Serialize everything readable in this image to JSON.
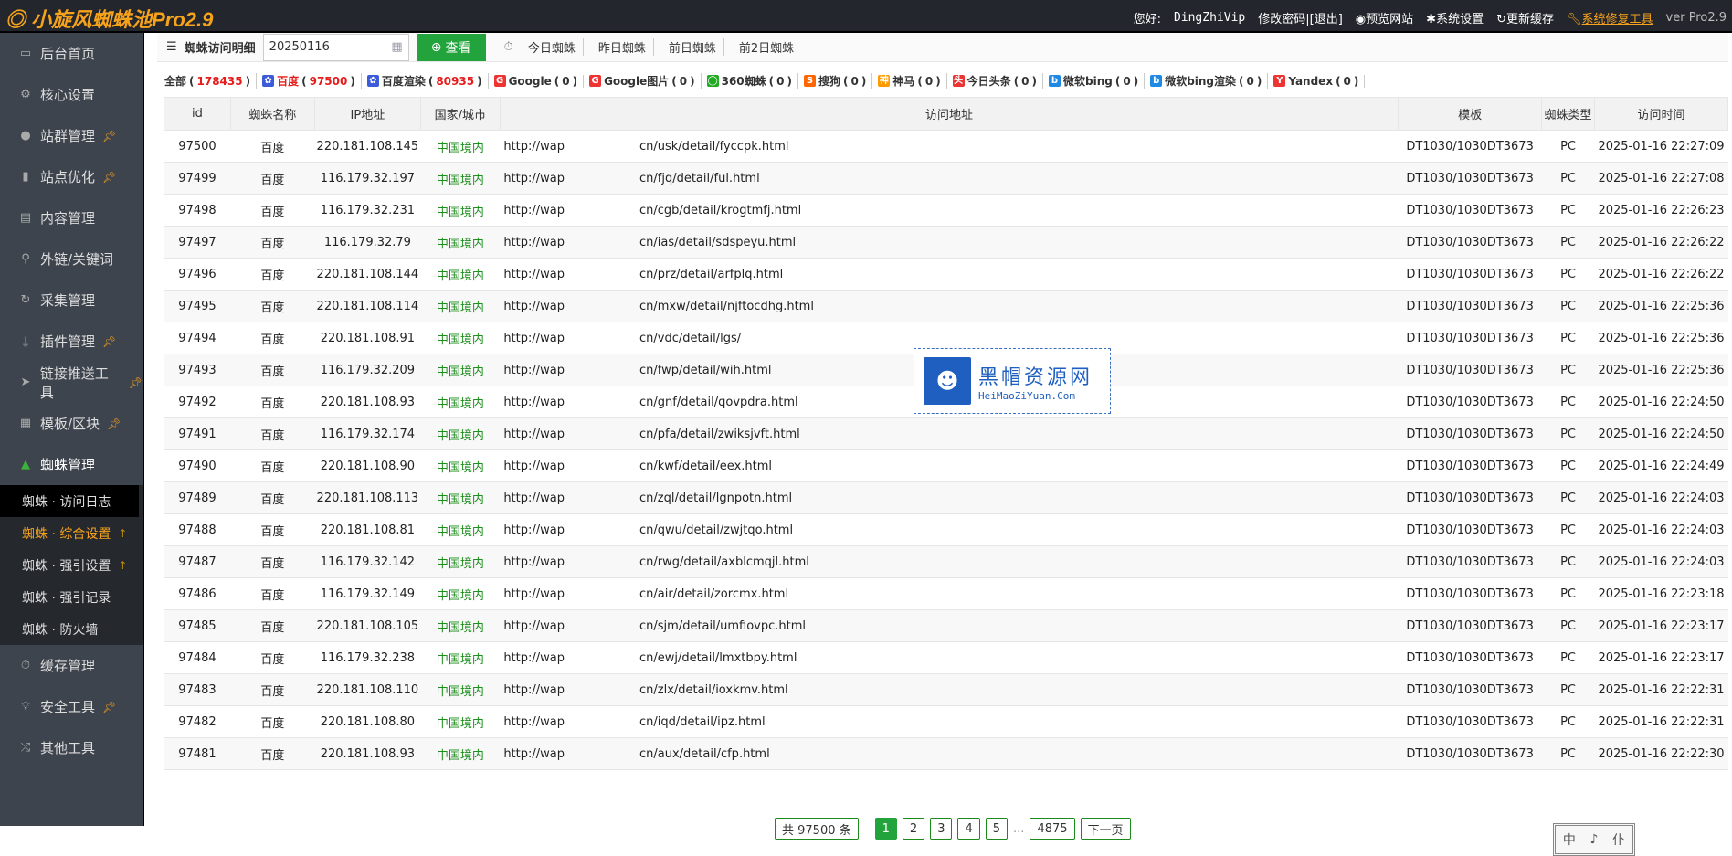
{
  "app": {
    "logo": "小旋风蜘蛛池Pro2.9"
  },
  "topbar": {
    "greeting": "您好:",
    "user": "DingZhiVip",
    "change_pwd": "修改密码",
    "logout": "[退出]",
    "preview": "预览网站",
    "settings": "系统设置",
    "cache": "更新缓存",
    "repair": "系统修复工具",
    "version": "ver Pro2.9"
  },
  "sidebar": {
    "items": [
      {
        "label": "后台首页",
        "icon": "monitor-icon",
        "pin": false
      },
      {
        "label": "核心设置",
        "icon": "gear-icon",
        "pin": false
      },
      {
        "label": "站群管理",
        "icon": "user-icon",
        "pin": true
      },
      {
        "label": "站点优化",
        "icon": "bar-chart-icon",
        "pin": true
      },
      {
        "label": "内容管理",
        "icon": "document-icon",
        "pin": false
      },
      {
        "label": "外链/关键词",
        "icon": "key-icon",
        "pin": false
      },
      {
        "label": "采集管理",
        "icon": "refresh-icon",
        "pin": false
      },
      {
        "label": "插件管理",
        "icon": "plug-icon",
        "pin": true
      },
      {
        "label": "链接推送工具",
        "icon": "send-icon",
        "pin": true
      },
      {
        "label": "模板/区块",
        "icon": "windows-icon",
        "pin": true
      },
      {
        "label": "蜘蛛管理",
        "icon": "android-icon",
        "pin": false
      }
    ],
    "submenu": [
      {
        "label": "蜘蛛 · 访问日志"
      },
      {
        "label": "蜘蛛 · 综合设置"
      },
      {
        "label": "蜘蛛 · 强引设置"
      },
      {
        "label": "蜘蛛 · 强引记录"
      },
      {
        "label": "蜘蛛 · 防火墙"
      }
    ],
    "bottom": [
      {
        "label": "缓存管理"
      },
      {
        "label": "安全工具"
      },
      {
        "label": "其他工具"
      }
    ]
  },
  "toolbar": {
    "title": "蜘蛛访问明细",
    "date": "20250116",
    "search": "查看",
    "quick": [
      "今日蜘蛛",
      "昨日蜘蛛",
      "前日蜘蛛",
      "前2日蜘蛛"
    ]
  },
  "filters": [
    {
      "label": "全部",
      "count": "178435"
    },
    {
      "label": "百度",
      "count": "97500"
    },
    {
      "label": "百度渲染",
      "count": "80935"
    },
    {
      "label": "Google",
      "count": "0"
    },
    {
      "label": "Google图片",
      "count": "0"
    },
    {
      "label": "360蜘蛛",
      "count": "0"
    },
    {
      "label": "搜狗",
      "count": "0"
    },
    {
      "label": "神马",
      "count": "0"
    },
    {
      "label": "今日头条",
      "count": "0"
    },
    {
      "label": "微软bing",
      "count": "0"
    },
    {
      "label": "微软bing渲染",
      "count": "0"
    },
    {
      "label": "Yandex",
      "count": "0"
    }
  ],
  "table": {
    "headers": [
      "id",
      "蜘蛛名称",
      "IP地址",
      "国家/城市",
      "访问地址",
      "模板",
      "蜘蛛类型",
      "访问时间"
    ],
    "url_prefix": "http://wap",
    "template": "DT1030/1030DT3673",
    "type": "PC",
    "spider": "百度",
    "region": "中国境内",
    "rows": [
      [
        "97500",
        "220.181.108.145",
        "cn/usk/detail/fyccpk.html",
        "2025-01-16 22:27:09"
      ],
      [
        "97499",
        "116.179.32.197",
        "cn/fjq/detail/ful.html",
        "2025-01-16 22:27:08"
      ],
      [
        "97498",
        "116.179.32.231",
        "cn/cgb/detail/krogtmfj.html",
        "2025-01-16 22:26:23"
      ],
      [
        "97497",
        "116.179.32.79",
        "cn/ias/detail/sdspeyu.html",
        "2025-01-16 22:26:22"
      ],
      [
        "97496",
        "220.181.108.144",
        "cn/prz/detail/arfplq.html",
        "2025-01-16 22:26:22"
      ],
      [
        "97495",
        "220.181.108.114",
        "cn/mxw/detail/njftocdhg.html",
        "2025-01-16 22:25:36"
      ],
      [
        "97494",
        "220.181.108.91",
        "cn/vdc/detail/lgs/",
        "2025-01-16 22:25:36"
      ],
      [
        "97493",
        "116.179.32.209",
        "cn/fwp/detail/wih.html",
        "2025-01-16 22:25:36"
      ],
      [
        "97492",
        "220.181.108.93",
        "cn/gnf/detail/qovpdra.html",
        "2025-01-16 22:24:50"
      ],
      [
        "97491",
        "116.179.32.174",
        "cn/pfa/detail/zwiksjvft.html",
        "2025-01-16 22:24:50"
      ],
      [
        "97490",
        "220.181.108.90",
        "cn/kwf/detail/eex.html",
        "2025-01-16 22:24:49"
      ],
      [
        "97489",
        "220.181.108.113",
        "cn/zql/detail/lgnpotn.html",
        "2025-01-16 22:24:03"
      ],
      [
        "97488",
        "220.181.108.81",
        "cn/qwu/detail/zwjtqo.html",
        "2025-01-16 22:24:03"
      ],
      [
        "97487",
        "116.179.32.142",
        "cn/rwg/detail/axblcmqjl.html",
        "2025-01-16 22:24:03"
      ],
      [
        "97486",
        "116.179.32.149",
        "cn/air/detail/zorcmx.html",
        "2025-01-16 22:23:18"
      ],
      [
        "97485",
        "220.181.108.105",
        "cn/sjm/detail/umfiovpc.html",
        "2025-01-16 22:23:17"
      ],
      [
        "97484",
        "116.179.32.238",
        "cn/ewj/detail/lmxtbpy.html",
        "2025-01-16 22:23:17"
      ],
      [
        "97483",
        "220.181.108.110",
        "cn/zlx/detail/ioxkmv.html",
        "2025-01-16 22:22:31"
      ],
      [
        "97482",
        "220.181.108.80",
        "cn/iqd/detail/ipz.html",
        "2025-01-16 22:22:31"
      ],
      [
        "97481",
        "220.181.108.93",
        "cn/aux/detail/cfp.html",
        "2025-01-16 22:22:30"
      ]
    ]
  },
  "watermark": {
    "title": "黑帽资源网",
    "sub": "HeiMaoZiYuan.Com"
  },
  "pager": {
    "total": "共 97500 条",
    "pages": [
      "1",
      "2",
      "3",
      "4",
      "5"
    ],
    "dots": "...",
    "last": "4875",
    "next": "下一页",
    "current": "1"
  },
  "seal": [
    "中",
    "♪",
    "仆"
  ]
}
